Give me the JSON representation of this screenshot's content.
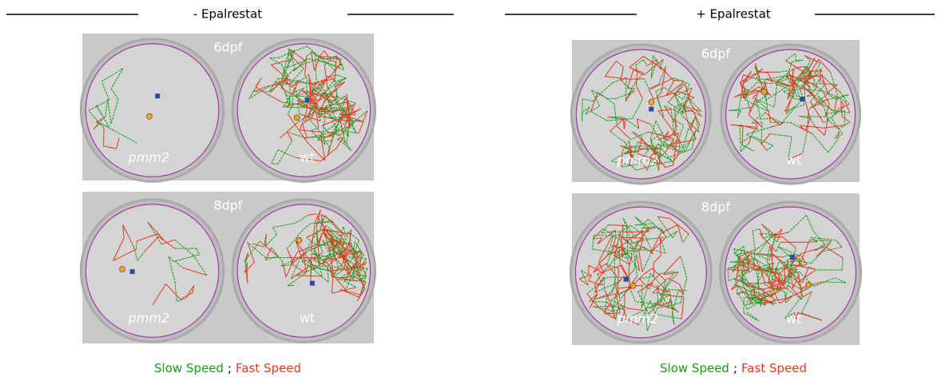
{
  "panels": [
    {
      "header": "- Epalrestat",
      "images": [
        {
          "label": "6dpf",
          "wells": [
            "pmm2",
            "wt"
          ]
        },
        {
          "label": "8dpf",
          "wells": [
            "pmm2",
            "wt"
          ]
        }
      ],
      "legend": {
        "slow": "Slow Speed",
        "separator": ";",
        "fast": "Fast Speed"
      }
    },
    {
      "header": "+ Epalrestat",
      "images": [
        {
          "label": "6dpf",
          "wells": [
            "pmm2",
            "wt"
          ]
        },
        {
          "label": "8dpf",
          "wells": [
            "pmm2",
            "wt"
          ]
        }
      ],
      "legend": {
        "slow": "Slow Speed",
        "separator": ";",
        "fast": "Fast Speed"
      }
    }
  ]
}
